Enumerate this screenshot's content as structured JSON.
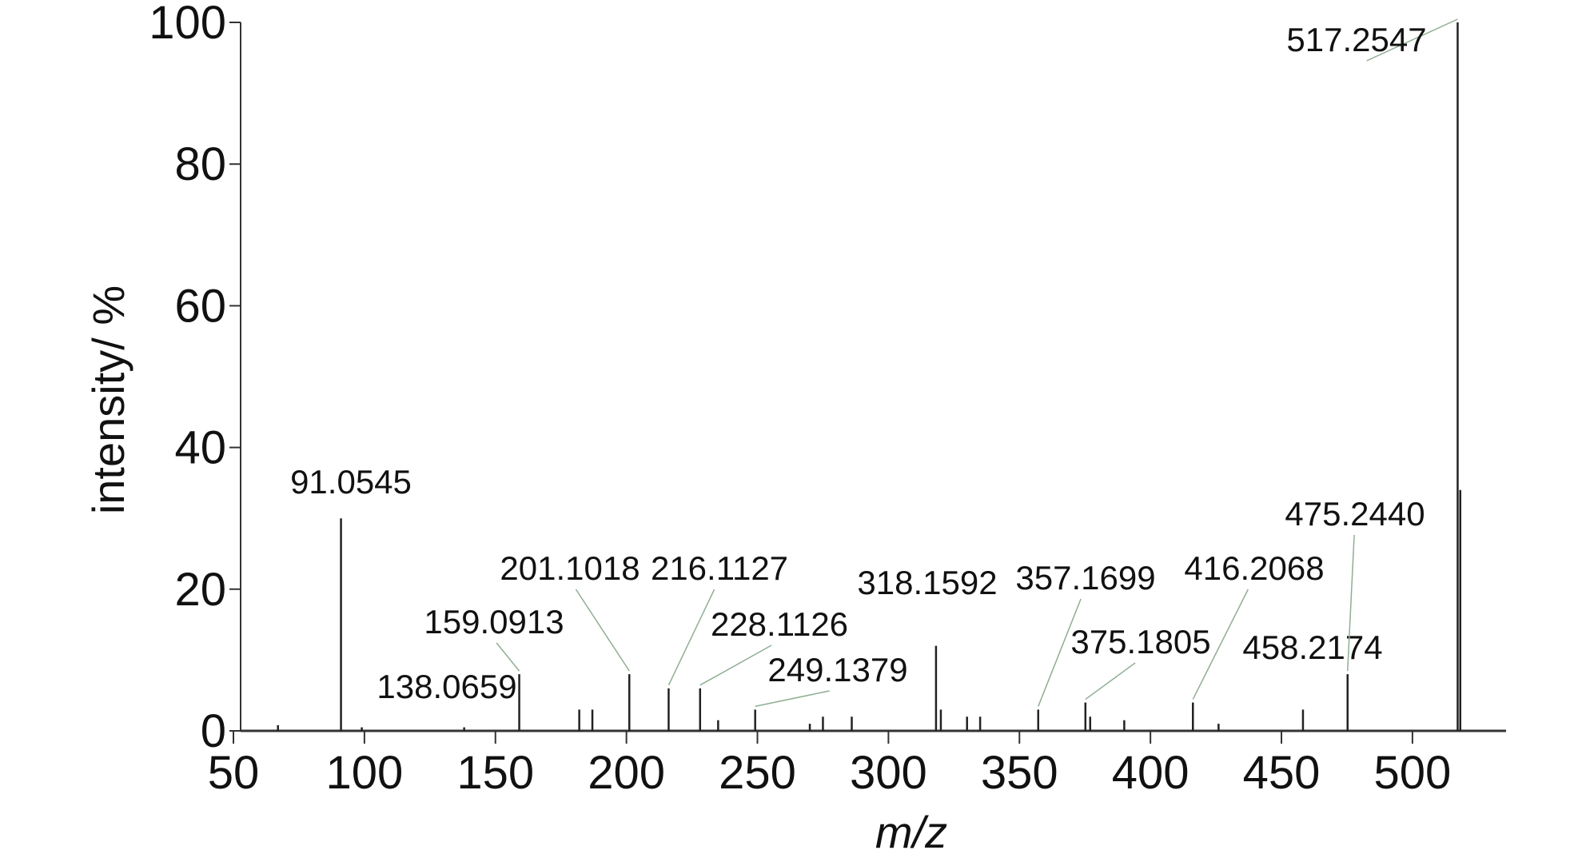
{
  "chart_data": {
    "type": "stem",
    "xlabel": "m/z",
    "ylabel": "intensity/ %",
    "xlim": [
      50,
      540
    ],
    "xticks": [
      50,
      100,
      150,
      200,
      250,
      300,
      350,
      400,
      450,
      500
    ],
    "ylim": [
      0,
      100
    ],
    "yticks": [
      0,
      20,
      40,
      60,
      80,
      100
    ],
    "color": "#222222",
    "x": [
      91.0545,
      138.0659,
      159.0913,
      201.1018,
      216.1127,
      228.1126,
      249.1379,
      318.1592,
      357.1699,
      375.1805,
      416.2068,
      458.2174,
      475.244,
      517.2547,
      518.26,
      67,
      99,
      182,
      187,
      235,
      270,
      275,
      286,
      320,
      330,
      335,
      377,
      390,
      426
    ],
    "values": [
      30,
      0.5,
      8,
      8,
      6,
      6,
      3,
      12,
      3,
      4,
      4,
      3,
      8,
      100,
      34,
      0.8,
      0.5,
      3,
      3,
      1.5,
      1,
      2,
      2,
      3,
      2,
      2,
      2,
      1.5,
      1
    ],
    "labels": [
      "91.0545",
      "138.0659",
      "159.0913",
      "201.1018",
      "216.1127",
      "228.1126",
      "249.1379",
      "318.1592",
      "357.1699",
      "375.1805",
      "416.2068",
      "458.2174",
      "475.2440",
      "517.2547",
      null,
      null,
      null,
      null,
      null,
      null,
      null,
      null,
      null,
      null,
      null,
      null,
      null,
      null,
      null
    ]
  }
}
